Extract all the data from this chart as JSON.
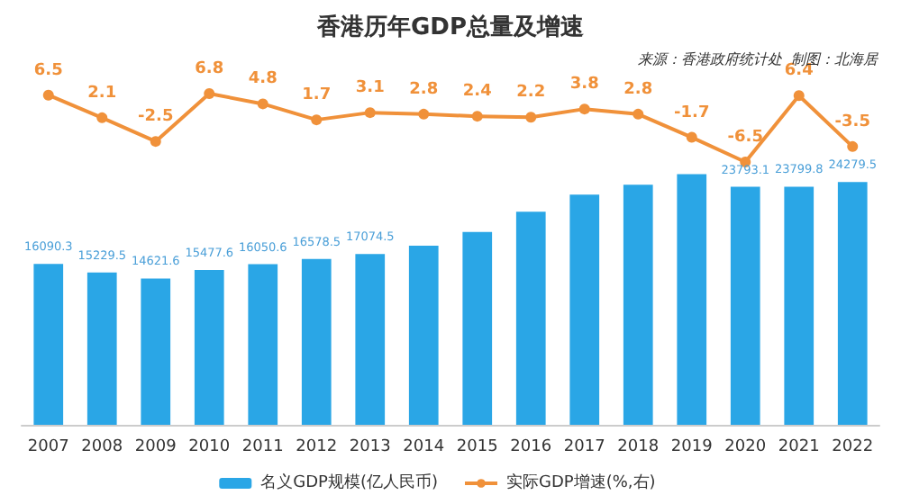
{
  "chart_data": [
    {
      "type": "line",
      "title": "香港历年GDP总量及增速",
      "annotations": [
        "来源：香港政府统计处  制图：北海居"
      ],
      "categories": [
        "2007",
        "2008",
        "2009",
        "2010",
        "2011",
        "2012",
        "2013",
        "2014",
        "2015",
        "2016",
        "2017",
        "2018",
        "2019",
        "2020",
        "2021",
        "2022"
      ],
      "series": [
        {
          "name": "实际GDP增速(%,右)",
          "color": "#f0913a",
          "values": [
            6.5,
            2.1,
            -2.5,
            6.8,
            4.8,
            1.7,
            3.1,
            2.8,
            2.4,
            2.2,
            3.8,
            2.8,
            -1.7,
            -6.5,
            6.4,
            -3.5
          ]
        }
      ],
      "data_labels": true,
      "legend": "bottom",
      "marker": "circle",
      "grid": false,
      "tick_labels": false
    },
    {
      "type": "bar",
      "categories": [
        "2007",
        "2008",
        "2009",
        "2010",
        "2011",
        "2012",
        "2013",
        "2014",
        "2015",
        "2016",
        "2017",
        "2018",
        "2019",
        "2020",
        "2021",
        "2022"
      ],
      "series": [
        {
          "name": "名义GDP规模(亿人民币)",
          "type": "bar",
          "color": "#2aa6e6",
          "values": [
            16090.3,
            15229.5,
            14621.6,
            15477.6,
            16050.6,
            16578.5,
            17074.5,
            17901,
            19285,
            21300,
            23000,
            24000,
            25046.9,
            23793.1,
            23799.8,
            24279.5
          ],
          "value_labels": [
            "16090.3",
            "15229.5",
            "14621.6",
            "15477.6",
            "16050.6",
            "16578.5",
            "17074.5",
            null,
            null,
            null,
            null,
            null,
            null,
            "23793.1",
            "23799.8",
            "24279.5"
          ]
        }
      ],
      "legend": "bottom",
      "grid": false,
      "tick_labels": "x"
    }
  ]
}
